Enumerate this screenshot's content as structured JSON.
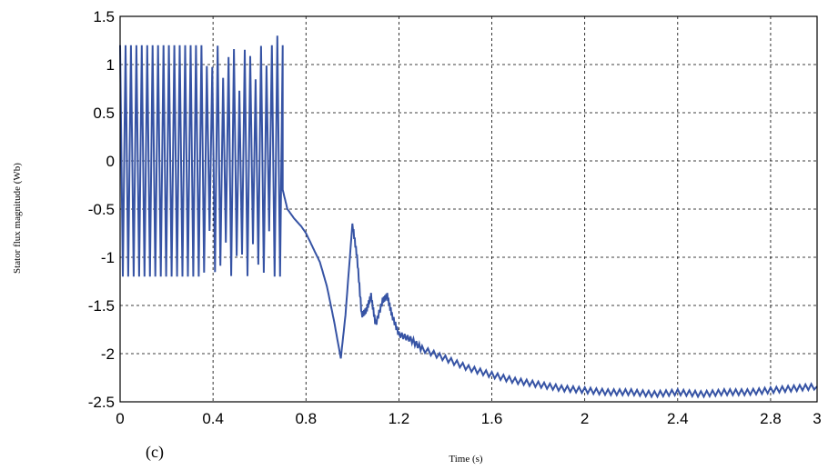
{
  "chart_data": {
    "type": "line",
    "title": "",
    "caption": "(c)",
    "xlabel": "Time (s)",
    "ylabel": "Stator flux magnitude (Wb)",
    "xlim": [
      0,
      3
    ],
    "ylim": [
      -2.5,
      1.5
    ],
    "xticks": [
      0,
      0.4,
      0.8,
      1.2,
      1.6,
      2,
      2.4,
      2.8,
      3
    ],
    "xtick_labels": [
      "0",
      "0.4",
      "0.8",
      "1.2",
      "1.6",
      "2",
      "2.4",
      "2.8",
      "3"
    ],
    "yticks": [
      -2.5,
      -2,
      -1.5,
      -1,
      -0.5,
      0,
      0.5,
      1,
      1.5
    ],
    "ytick_labels": [
      "-2.5",
      "-2",
      "-1.5",
      "-1",
      "-0.5",
      "0",
      "0.5",
      "1",
      "1.5"
    ],
    "grid": true,
    "line_color": "#3653a4",
    "series": [
      {
        "name": "",
        "description_points": {
          "x": [
            0.7,
            0.72,
            0.75,
            0.78,
            0.8,
            0.83,
            0.86,
            0.89,
            0.92,
            0.95,
            0.97,
            1.0,
            1.02,
            1.04,
            1.06,
            1.08,
            1.1,
            1.13,
            1.15,
            1.17,
            1.2,
            1.25,
            1.3,
            1.4,
            1.5,
            1.6,
            1.7,
            1.8,
            1.9,
            2.0,
            2.1,
            2.2,
            2.3,
            2.4,
            2.5,
            2.6,
            2.7,
            2.8,
            2.9,
            3.0
          ],
          "y": [
            -0.3,
            -0.5,
            -0.6,
            -0.68,
            -0.75,
            -0.9,
            -1.05,
            -1.3,
            -1.65,
            -2.05,
            -1.6,
            -0.65,
            -1.0,
            -1.6,
            -1.55,
            -1.4,
            -1.7,
            -1.45,
            -1.4,
            -1.6,
            -1.8,
            -1.85,
            -1.95,
            -2.05,
            -2.15,
            -2.22,
            -2.28,
            -2.32,
            -2.36,
            -2.38,
            -2.4,
            -2.4,
            -2.42,
            -2.4,
            -2.42,
            -2.4,
            -2.4,
            -2.38,
            -2.36,
            -2.34
          ]
        },
        "oscillation": {
          "x_start": 0,
          "x_end": 0.7,
          "y_upper": 1.2,
          "y_lower": -1.2,
          "note_peak_near_x": 0.68,
          "peak_y": 1.3
        }
      }
    ]
  }
}
